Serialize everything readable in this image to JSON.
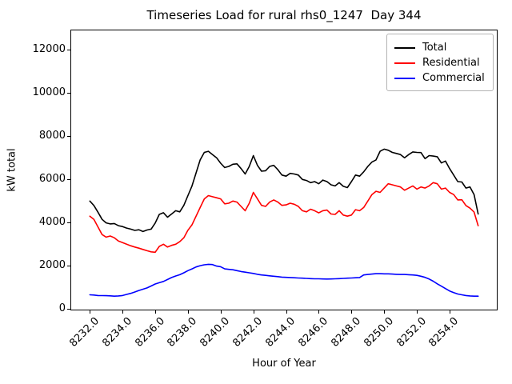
{
  "chart_data": {
    "type": "line",
    "title": "Timeseries Load for rural rhs0_1247  Day 344",
    "xlabel": "Hour of Year",
    "ylabel": "kW total",
    "xlim": [
      8230.8125,
      8256.9375
    ],
    "ylim": [
      -60,
      12930
    ],
    "grid": false,
    "legend_position": "upper right",
    "xtick_values": [
      8232,
      8234,
      8236,
      8238,
      8240,
      8242,
      8244,
      8246,
      8248,
      8250,
      8252,
      8254
    ],
    "xtick_labels": [
      "8232.0",
      "8234.0",
      "8236.0",
      "8238.0",
      "8240.0",
      "8242.0",
      "8244.0",
      "8246.0",
      "8248.0",
      "8250.0",
      "8252.0",
      "8254.0"
    ],
    "ytick_values": [
      0,
      2000,
      4000,
      6000,
      8000,
      10000,
      12000
    ],
    "ytick_labels": [
      "0",
      "2000",
      "4000",
      "6000",
      "8000",
      "10000",
      "12000"
    ],
    "x_start": 8232.0,
    "x_step": 0.25,
    "series": [
      {
        "name": "Total",
        "color": "#000000",
        "values": [
          5000,
          4790,
          4480,
          4150,
          3990,
          3940,
          3960,
          3860,
          3820,
          3750,
          3700,
          3640,
          3670,
          3590,
          3660,
          3700,
          3980,
          4380,
          4460,
          4250,
          4400,
          4550,
          4500,
          4800,
          5250,
          5700,
          6300,
          6900,
          7250,
          7300,
          7150,
          7000,
          6750,
          6550,
          6600,
          6700,
          6720,
          6500,
          6250,
          6600,
          7100,
          6650,
          6380,
          6400,
          6600,
          6650,
          6450,
          6200,
          6150,
          6280,
          6250,
          6200,
          6000,
          5950,
          5850,
          5900,
          5800,
          5970,
          5900,
          5750,
          5700,
          5850,
          5680,
          5620,
          5900,
          6200,
          6150,
          6350,
          6600,
          6800,
          6900,
          7300,
          7400,
          7350,
          7250,
          7200,
          7150,
          7000,
          7150,
          7270,
          7250,
          7240,
          6960,
          7100,
          7080,
          7050,
          6760,
          6850,
          6500,
          6200,
          5900,
          5880,
          5600,
          5650,
          5300,
          4400
        ]
      },
      {
        "name": "Residential",
        "color": "#ff0000",
        "values": [
          4300,
          4150,
          3800,
          3450,
          3330,
          3380,
          3300,
          3150,
          3080,
          3000,
          2930,
          2870,
          2820,
          2760,
          2700,
          2650,
          2630,
          2900,
          3000,
          2870,
          2950,
          3000,
          3120,
          3300,
          3650,
          3900,
          4300,
          4700,
          5100,
          5250,
          5200,
          5150,
          5100,
          4870,
          4900,
          5000,
          4950,
          4750,
          4550,
          4900,
          5400,
          5100,
          4800,
          4750,
          4950,
          5050,
          4950,
          4800,
          4820,
          4900,
          4850,
          4750,
          4550,
          4500,
          4620,
          4550,
          4450,
          4550,
          4580,
          4400,
          4380,
          4550,
          4350,
          4300,
          4350,
          4600,
          4550,
          4700,
          5000,
          5300,
          5450,
          5400,
          5600,
          5800,
          5750,
          5700,
          5650,
          5500,
          5600,
          5700,
          5550,
          5650,
          5600,
          5700,
          5850,
          5800,
          5550,
          5600,
          5400,
          5300,
          5050,
          5060,
          4790,
          4670,
          4490,
          3860
        ]
      },
      {
        "name": "Commercial",
        "color": "#0000ff",
        "values": [
          660,
          650,
          630,
          625,
          620,
          615,
          600,
          610,
          630,
          680,
          730,
          790,
          860,
          920,
          980,
          1070,
          1160,
          1220,
          1280,
          1370,
          1460,
          1530,
          1590,
          1680,
          1780,
          1860,
          1950,
          2010,
          2050,
          2070,
          2060,
          1990,
          1960,
          1860,
          1840,
          1820,
          1780,
          1740,
          1710,
          1680,
          1650,
          1610,
          1580,
          1560,
          1540,
          1520,
          1500,
          1480,
          1470,
          1460,
          1450,
          1440,
          1430,
          1420,
          1410,
          1400,
          1400,
          1395,
          1390,
          1395,
          1400,
          1410,
          1420,
          1430,
          1440,
          1450,
          1460,
          1580,
          1600,
          1620,
          1640,
          1640,
          1630,
          1630,
          1620,
          1610,
          1600,
          1600,
          1590,
          1580,
          1560,
          1520,
          1470,
          1390,
          1290,
          1170,
          1060,
          950,
          840,
          760,
          700,
          660,
          630,
          610,
          600,
          600
        ]
      }
    ]
  }
}
